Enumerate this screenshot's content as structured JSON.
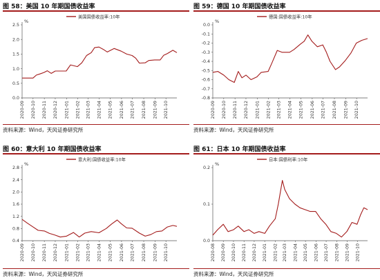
{
  "source_text": "资料来源：Wind，天风证券研究所",
  "series_color": "#a31a1a",
  "chart_data": [
    {
      "type": "line",
      "title": "图 58：美国 10 年期国债收益率",
      "unit": "%",
      "series_name": "美国国债收益率:10年",
      "ylim": [
        0,
        2.5
      ],
      "yticks": [
        "0.0",
        "0.5",
        "1.0",
        "1.5",
        "2.0",
        "2.5"
      ],
      "x_start": "2020-09-01",
      "x_end": "2021-10-31",
      "xticks": [
        "2020-09",
        "2020-10",
        "2020-11",
        "2020-12",
        "2021-01",
        "2021-02",
        "2021-03",
        "2021-04",
        "2021-05",
        "2021-06",
        "2021-07",
        "2021-08",
        "2021-09",
        "2021-10"
      ],
      "grid": false,
      "points": [
        [
          "2020-09-01",
          0.68
        ],
        [
          "2020-09-15",
          0.68
        ],
        [
          "2020-10-01",
          0.68
        ],
        [
          "2020-10-10",
          0.78
        ],
        [
          "2020-10-20",
          0.82
        ],
        [
          "2020-10-31",
          0.87
        ],
        [
          "2020-11-09",
          0.93
        ],
        [
          "2020-11-20",
          0.84
        ],
        [
          "2020-12-01",
          0.92
        ],
        [
          "2020-12-15",
          0.92
        ],
        [
          "2020-12-31",
          0.92
        ],
        [
          "2021-01-12",
          1.13
        ],
        [
          "2021-01-31",
          1.07
        ],
        [
          "2021-02-12",
          1.2
        ],
        [
          "2021-02-25",
          1.45
        ],
        [
          "2021-03-10",
          1.55
        ],
        [
          "2021-03-19",
          1.72
        ],
        [
          "2021-03-31",
          1.74
        ],
        [
          "2021-04-12",
          1.66
        ],
        [
          "2021-04-23",
          1.57
        ],
        [
          "2021-05-12",
          1.69
        ],
        [
          "2021-05-31",
          1.6
        ],
        [
          "2021-06-15",
          1.5
        ],
        [
          "2021-06-30",
          1.45
        ],
        [
          "2021-07-10",
          1.36
        ],
        [
          "2021-07-20",
          1.19
        ],
        [
          "2021-08-05",
          1.2
        ],
        [
          "2021-08-15",
          1.28
        ],
        [
          "2021-08-31",
          1.3
        ],
        [
          "2021-09-15",
          1.3
        ],
        [
          "2021-09-25",
          1.46
        ],
        [
          "2021-10-05",
          1.52
        ],
        [
          "2021-10-20",
          1.63
        ],
        [
          "2021-10-31",
          1.55
        ]
      ]
    },
    {
      "type": "line",
      "title": "图 59：德国 10 年期国债收益率",
      "unit": "%",
      "series_name": "德国:国债收益率:10年",
      "ylim": [
        -0.8,
        0
      ],
      "yticks": [
        "-0.8",
        "-0.7",
        "-0.6",
        "-0.5",
        "-0.4",
        "-0.3",
        "-0.2",
        "-0.1",
        "0.0"
      ],
      "x_start": "2020-09-01",
      "x_end": "2021-10-31",
      "xticks": [
        "2020-09",
        "2020-10",
        "2020-11",
        "2020-12",
        "2021-01",
        "2021-02",
        "2021-03",
        "2021-04",
        "2021-05",
        "2021-06",
        "2021-07",
        "2021-08",
        "2021-09",
        "2021-10"
      ],
      "grid": false,
      "points": [
        [
          "2020-09-01",
          -0.52
        ],
        [
          "2020-09-15",
          -0.51
        ],
        [
          "2020-10-01",
          -0.55
        ],
        [
          "2020-10-15",
          -0.6
        ],
        [
          "2020-10-30",
          -0.63
        ],
        [
          "2020-11-10",
          -0.51
        ],
        [
          "2020-11-20",
          -0.58
        ],
        [
          "2020-12-01",
          -0.55
        ],
        [
          "2020-12-15",
          -0.6
        ],
        [
          "2020-12-31",
          -0.57
        ],
        [
          "2021-01-12",
          -0.52
        ],
        [
          "2021-01-31",
          -0.51
        ],
        [
          "2021-02-10",
          -0.42
        ],
        [
          "2021-02-25",
          -0.28
        ],
        [
          "2021-03-10",
          -0.3
        ],
        [
          "2021-03-31",
          -0.3
        ],
        [
          "2021-04-12",
          -0.27
        ],
        [
          "2021-04-30",
          -0.21
        ],
        [
          "2021-05-10",
          -0.18
        ],
        [
          "2021-05-20",
          -0.11
        ],
        [
          "2021-05-31",
          -0.18
        ],
        [
          "2021-06-15",
          -0.24
        ],
        [
          "2021-06-30",
          -0.22
        ],
        [
          "2021-07-10",
          -0.3
        ],
        [
          "2021-07-20",
          -0.4
        ],
        [
          "2021-08-04",
          -0.49
        ],
        [
          "2021-08-15",
          -0.46
        ],
        [
          "2021-08-31",
          -0.39
        ],
        [
          "2021-09-15",
          -0.31
        ],
        [
          "2021-09-30",
          -0.2
        ],
        [
          "2021-10-15",
          -0.17
        ],
        [
          "2021-10-31",
          -0.15
        ]
      ]
    },
    {
      "type": "line",
      "title": "图 60：意大利 10 年期国债收益率",
      "unit": "%",
      "series_name": "意大利:国债收益率:10年",
      "ylim": [
        0.4,
        2.8
      ],
      "yticks": [
        "0.4",
        "0.8",
        "1.2",
        "1.6",
        "2.0",
        "2.4",
        "2.8"
      ],
      "x_start": "2020-09-01",
      "x_end": "2021-10-31",
      "xticks": [
        "2020-09",
        "2020-10",
        "2020-11",
        "2020-12",
        "2021-01",
        "2021-02",
        "2021-03",
        "2021-04",
        "2021-05",
        "2021-06",
        "2021-07",
        "2021-08",
        "2021-09",
        "2021-10"
      ],
      "grid": false,
      "points": [
        [
          "2020-09-01",
          1.1
        ],
        [
          "2020-09-15",
          0.98
        ],
        [
          "2020-10-01",
          0.85
        ],
        [
          "2020-10-15",
          0.74
        ],
        [
          "2020-11-01",
          0.72
        ],
        [
          "2020-11-15",
          0.64
        ],
        [
          "2020-12-01",
          0.58
        ],
        [
          "2020-12-15",
          0.52
        ],
        [
          "2021-01-01",
          0.55
        ],
        [
          "2021-01-20",
          0.67
        ],
        [
          "2021-02-05",
          0.52
        ],
        [
          "2021-02-20",
          0.65
        ],
        [
          "2021-03-10",
          0.7
        ],
        [
          "2021-03-31",
          0.66
        ],
        [
          "2021-04-20",
          0.8
        ],
        [
          "2021-05-05",
          0.95
        ],
        [
          "2021-05-20",
          1.08
        ],
        [
          "2021-05-31",
          0.96
        ],
        [
          "2021-06-15",
          0.82
        ],
        [
          "2021-06-30",
          0.81
        ],
        [
          "2021-07-20",
          0.65
        ],
        [
          "2021-08-05",
          0.55
        ],
        [
          "2021-08-20",
          0.6
        ],
        [
          "2021-09-05",
          0.7
        ],
        [
          "2021-09-20",
          0.72
        ],
        [
          "2021-10-05",
          0.85
        ],
        [
          "2021-10-20",
          0.9
        ],
        [
          "2021-10-31",
          0.87
        ]
      ]
    },
    {
      "type": "line",
      "title": "图 61：日本 10 年期国债收益率",
      "unit": "%",
      "series_name": "日本:国债利率:10年",
      "ylim": [
        0,
        0.2
      ],
      "yticks": [
        "0.0",
        "0.1",
        "0.2"
      ],
      "x_start": "2020-08-01",
      "x_end": "2021-10-31",
      "xticks": [
        "2020-08",
        "2020-09",
        "2020-10",
        "2020-11",
        "2020-12",
        "2021-01",
        "2021-02",
        "2021-03",
        "2021-04",
        "2021-05",
        "2021-06",
        "2021-07",
        "2021-08",
        "2021-09",
        "2021-10"
      ],
      "grid": false,
      "points": [
        [
          "2020-08-01",
          0.015
        ],
        [
          "2020-08-15",
          0.03
        ],
        [
          "2020-09-01",
          0.045
        ],
        [
          "2020-09-15",
          0.025
        ],
        [
          "2020-10-01",
          0.03
        ],
        [
          "2020-10-15",
          0.04
        ],
        [
          "2020-11-01",
          0.025
        ],
        [
          "2020-11-15",
          0.03
        ],
        [
          "2020-12-01",
          0.02
        ],
        [
          "2020-12-15",
          0.025
        ],
        [
          "2021-01-01",
          0.02
        ],
        [
          "2021-01-15",
          0.04
        ],
        [
          "2021-02-01",
          0.06
        ],
        [
          "2021-02-10",
          0.1
        ],
        [
          "2021-02-22",
          0.165
        ],
        [
          "2021-03-01",
          0.14
        ],
        [
          "2021-03-15",
          0.115
        ],
        [
          "2021-03-31",
          0.1
        ],
        [
          "2021-04-15",
          0.09
        ],
        [
          "2021-04-30",
          0.085
        ],
        [
          "2021-05-15",
          0.08
        ],
        [
          "2021-05-31",
          0.08
        ],
        [
          "2021-06-15",
          0.06
        ],
        [
          "2021-06-30",
          0.045
        ],
        [
          "2021-07-15",
          0.025
        ],
        [
          "2021-07-31",
          0.02
        ],
        [
          "2021-08-15",
          0.01
        ],
        [
          "2021-08-31",
          0.025
        ],
        [
          "2021-09-15",
          0.05
        ],
        [
          "2021-09-30",
          0.045
        ],
        [
          "2021-10-10",
          0.07
        ],
        [
          "2021-10-20",
          0.09
        ],
        [
          "2021-10-31",
          0.085
        ]
      ]
    }
  ]
}
